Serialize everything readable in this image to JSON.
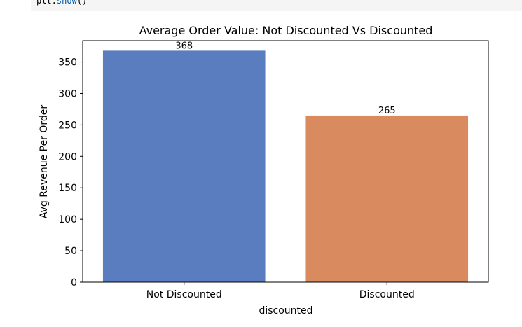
{
  "code_cell": {
    "obj": "plt.",
    "fn": "show",
    "parens": "()"
  },
  "chart_data": {
    "type": "bar",
    "title": "Average Order Value: Not Discounted Vs Discounted",
    "xlabel": "discounted",
    "ylabel": "Avg Revenue Per Order",
    "categories": [
      "Not Discounted",
      "Discounted"
    ],
    "values": [
      368,
      265
    ],
    "data_labels": [
      "368",
      "265"
    ],
    "colors": [
      "#5a7dbf",
      "#d98b5f"
    ],
    "ylim": [
      0,
      384
    ],
    "yticks": [
      0,
      50,
      100,
      150,
      200,
      250,
      300,
      350
    ],
    "grid": false
  }
}
